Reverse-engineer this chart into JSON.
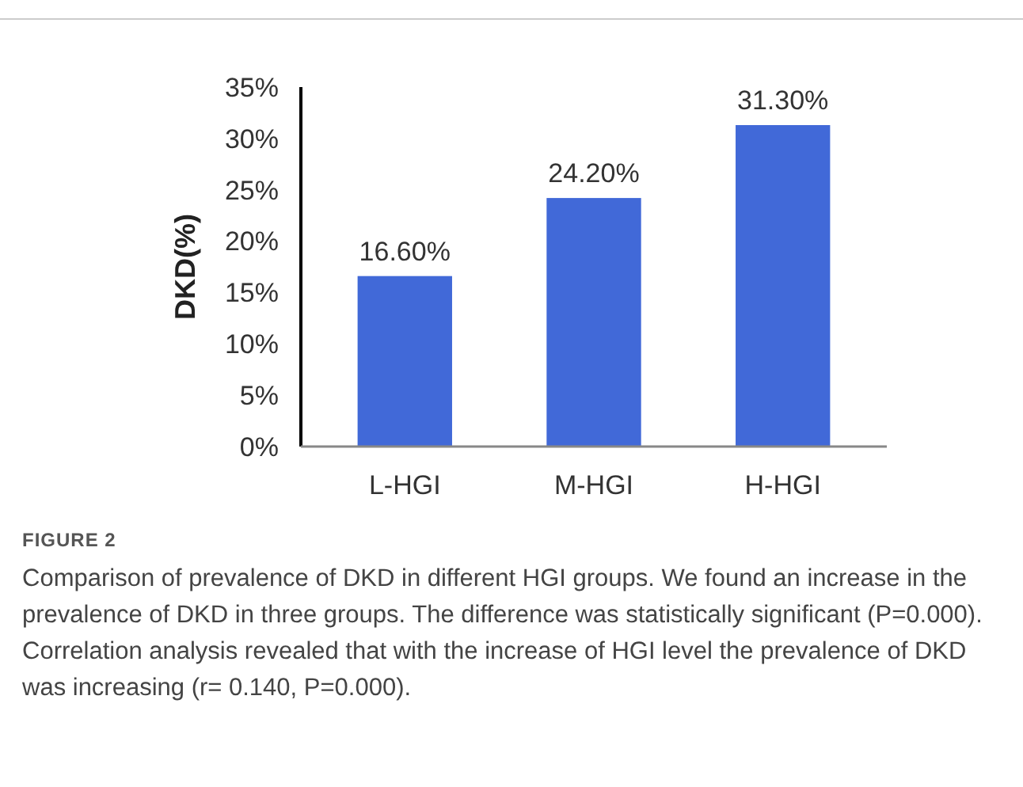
{
  "chart_data": {
    "type": "bar",
    "ylabel": "DKD(%)",
    "categories": [
      "L-HGI",
      "M-HGI",
      "H-HGI"
    ],
    "values": [
      16.6,
      24.2,
      31.3
    ],
    "value_labels": [
      "16.60%",
      "24.20%",
      "31.30%"
    ],
    "color": "#4169d8",
    "ylim": [
      0,
      35
    ],
    "yticks": [
      {
        "value": 0,
        "label": "0%"
      },
      {
        "value": 5,
        "label": "5%"
      },
      {
        "value": 10,
        "label": "10%"
      },
      {
        "value": 15,
        "label": "15%"
      },
      {
        "value": 20,
        "label": "20%"
      },
      {
        "value": 25,
        "label": "25%"
      },
      {
        "value": 30,
        "label": "30%"
      },
      {
        "value": 35,
        "label": "35%"
      }
    ],
    "grid": false,
    "annotations": [
      "FIGURE 2",
      "Comparison of prevalence of DKD in different HGI groups. We found an increase in the prevalence of DKD in three groups. The difference was statistically significant (P=0.000). Correlation analysis revealed that with the increase of HGI level the prevalence of DKD was increasing (r= 0.140, P=0.000)."
    ]
  }
}
